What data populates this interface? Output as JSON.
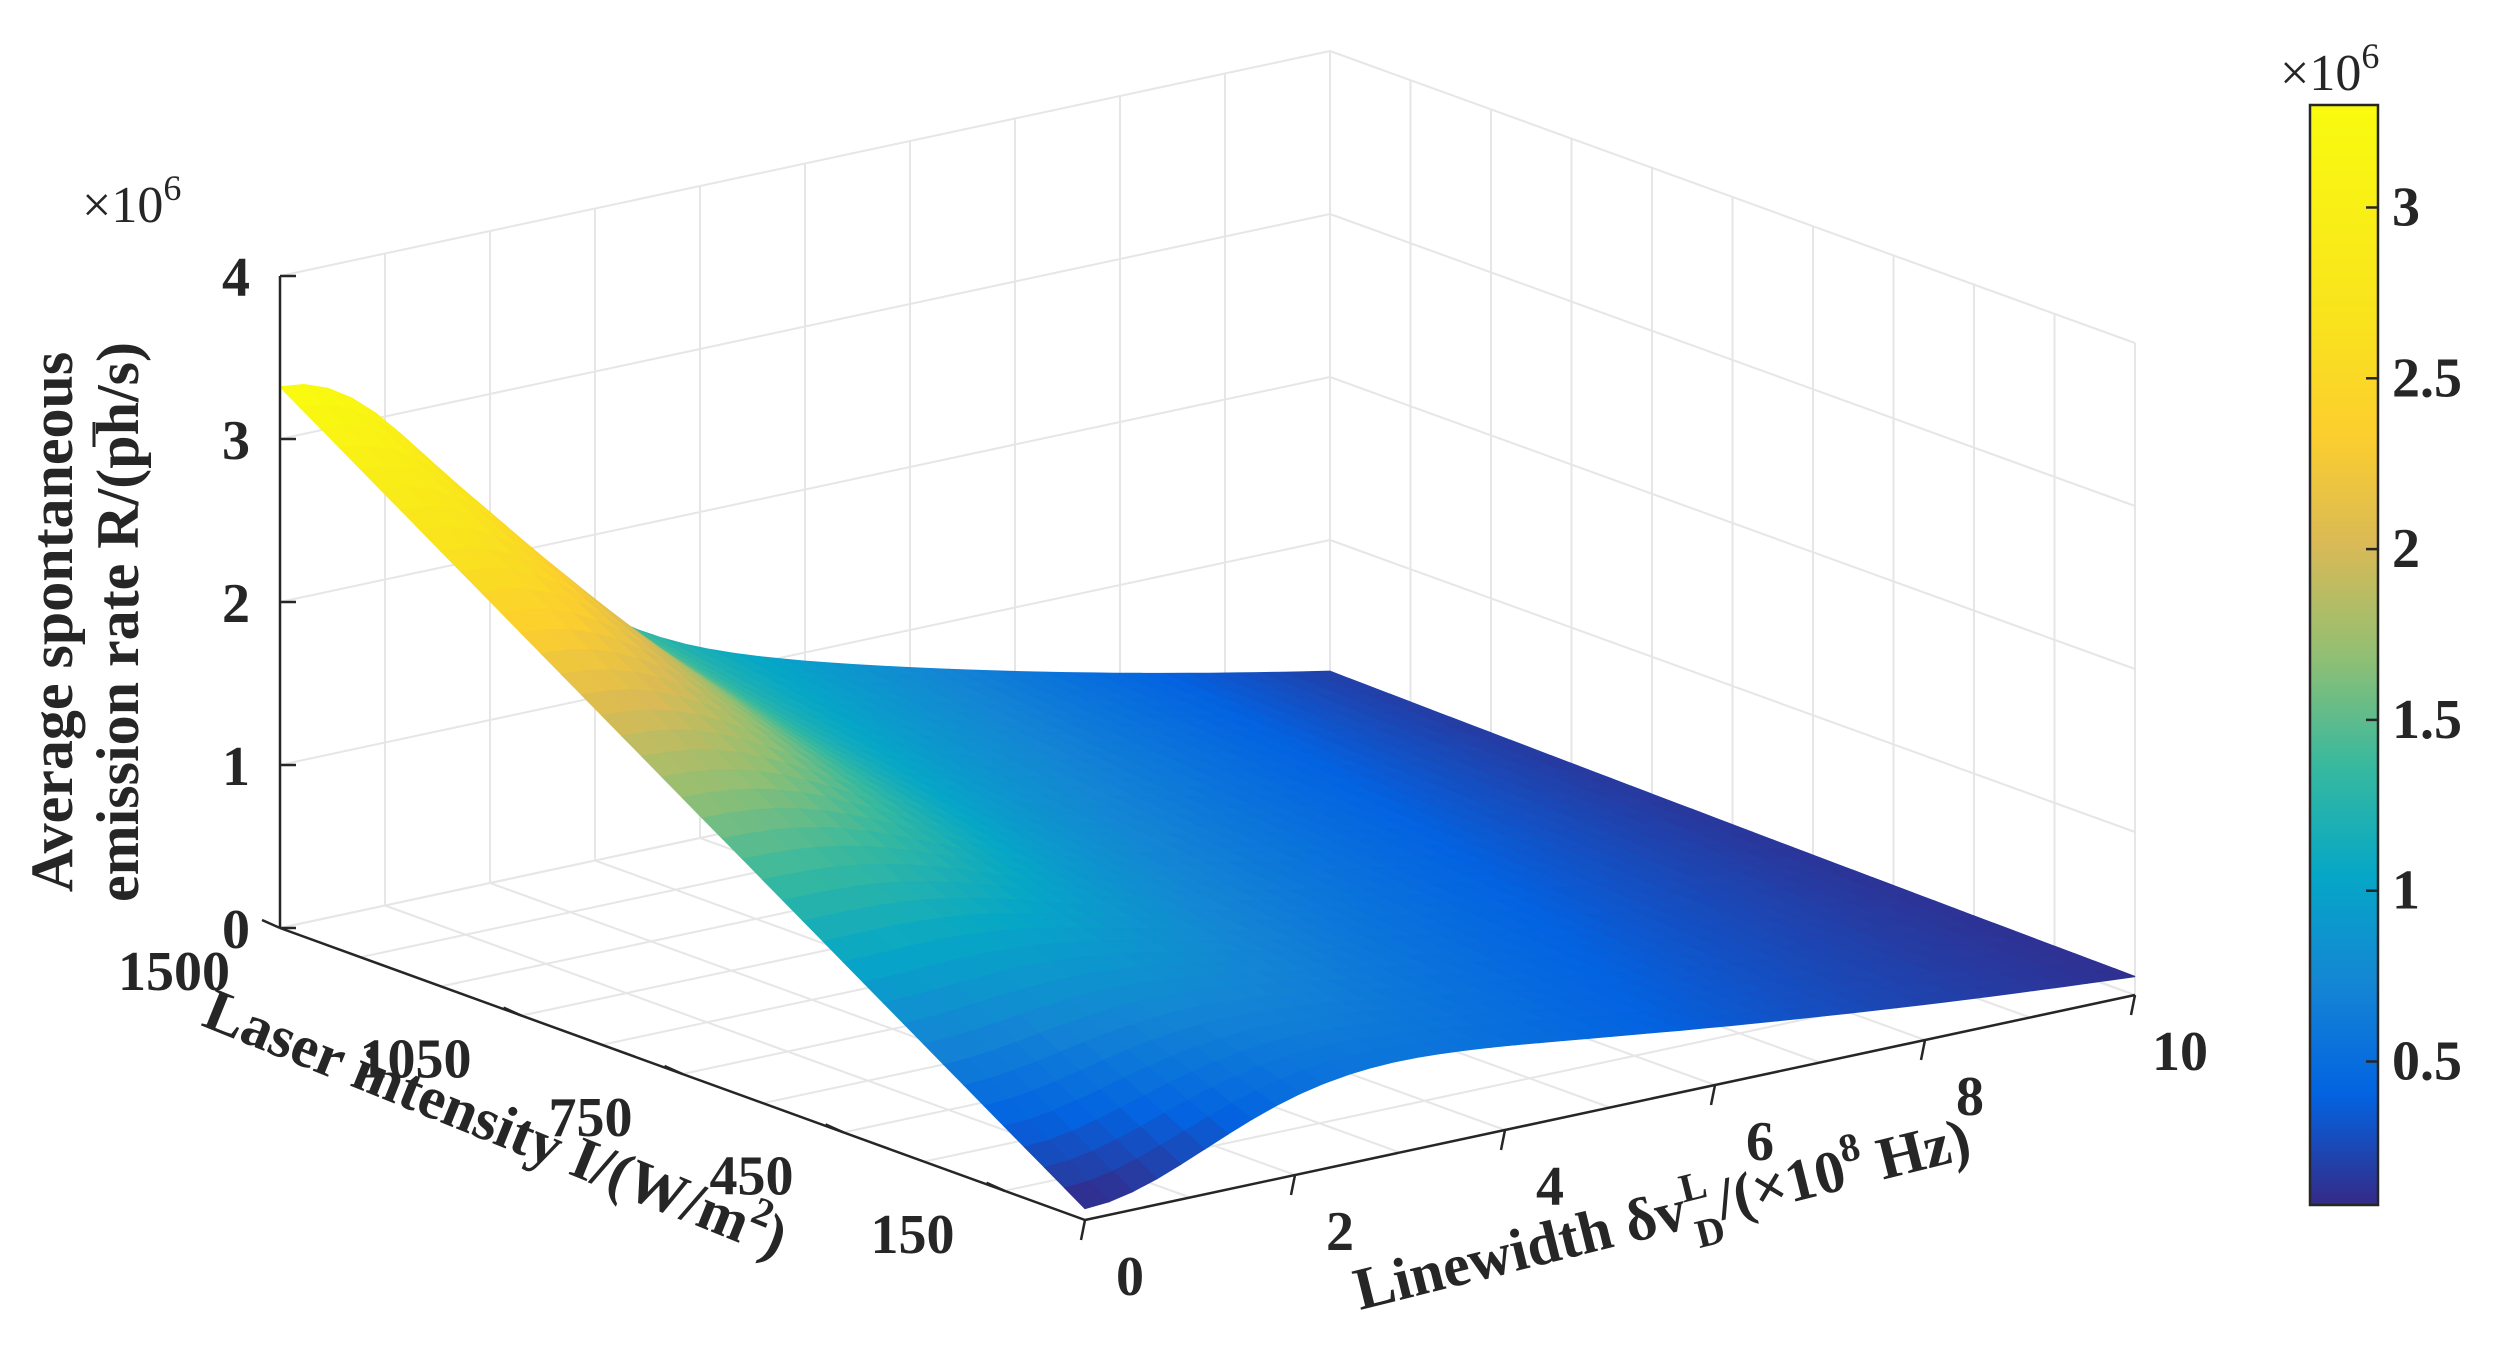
{
  "chart_data": {
    "type": "surface",
    "title": "",
    "xlabel": "Linewidth δv",
    "xlabel_sup": "L",
    "xlabel_sub": "D",
    "xlabel_unit": "/(×10",
    "xlabel_unit_sup": "8",
    "xlabel_unit_end": " Hz)",
    "ylabel": "Laser intensity I/(W/m",
    "ylabel_sup": "2",
    "ylabel_end": ")",
    "zlabel_line1": "Average spontaneous",
    "zlabel_line2": "emission rate R/(ph/s)",
    "z_multiplier": "×10",
    "z_multiplier_exp": "6",
    "colorbar_multiplier": "×10",
    "colorbar_multiplier_exp": "6",
    "x_ticks": [
      0,
      2,
      4,
      6,
      8,
      10
    ],
    "y_ticks": [
      150,
      450,
      750,
      1050,
      1500
    ],
    "z_ticks": [
      0,
      1,
      2,
      3,
      4
    ],
    "xlim": [
      0,
      10
    ],
    "ylim": [
      0,
      1500
    ],
    "zlim": [
      0,
      4
    ],
    "colorbar_ticks": [
      0.5,
      1,
      1.5,
      2,
      2.5,
      3
    ],
    "colorbar_range": [
      0.08,
      3.3
    ],
    "colormap": "parula",
    "grid": true,
    "surface_grid_x": [
      0,
      1,
      2,
      3,
      4,
      5,
      6,
      7,
      8,
      9,
      10
    ],
    "surface_grid_y": [
      0,
      150,
      300,
      450,
      600,
      750,
      900,
      1050,
      1200,
      1350,
      1500
    ],
    "surface_z_note": "Average spontaneous emission rate in units of 1e6 ph/s; peak ≈ 3.3 at small linewidth and max intensity, decaying toward ≈ 0.1 at 10×1e8 Hz and low intensity"
  }
}
